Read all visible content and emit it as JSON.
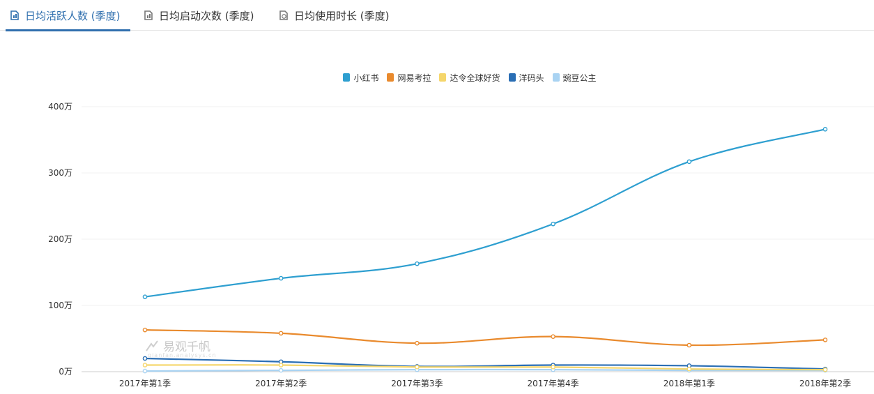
{
  "tabs": [
    {
      "label": "日均活跃人数 (季度)",
      "active": true
    },
    {
      "label": "日均启动次数 (季度)",
      "active": false
    },
    {
      "label": "日均使用时长 (季度)",
      "active": false
    }
  ],
  "watermark": {
    "text": "易观千帆",
    "sub": "qianfan.analysys.cn"
  },
  "chart_data": {
    "type": "line",
    "categories": [
      "2017年第1季",
      "2017年第2季",
      "2017年第3季",
      "2017年第4季",
      "2018年第1季",
      "2018年第2季"
    ],
    "y_ticks": [
      {
        "value": 0,
        "label": "0万"
      },
      {
        "value": 100,
        "label": "100万"
      },
      {
        "value": 200,
        "label": "200万"
      },
      {
        "value": 300,
        "label": "300万"
      },
      {
        "value": 400,
        "label": "400万"
      }
    ],
    "ylim": [
      0,
      400
    ],
    "unit": "万",
    "grid": true,
    "legend_position": "top-center",
    "series": [
      {
        "name": "小红书",
        "color": "#2e9fd0",
        "values": [
          113,
          141,
          163,
          223,
          317,
          366
        ]
      },
      {
        "name": "网易考拉",
        "color": "#e98a2d",
        "values": [
          63,
          58,
          43,
          53,
          40,
          48
        ]
      },
      {
        "name": "达令全球好货",
        "color": "#f5d66b",
        "values": [
          10,
          10,
          7,
          7,
          4,
          3
        ]
      },
      {
        "name": "洋码头",
        "color": "#2a6eb4",
        "values": [
          20,
          15,
          8,
          10,
          9,
          4
        ]
      },
      {
        "name": "豌豆公主",
        "color": "#a9d3f2",
        "values": [
          1,
          2,
          3,
          3,
          2,
          2
        ]
      }
    ]
  }
}
